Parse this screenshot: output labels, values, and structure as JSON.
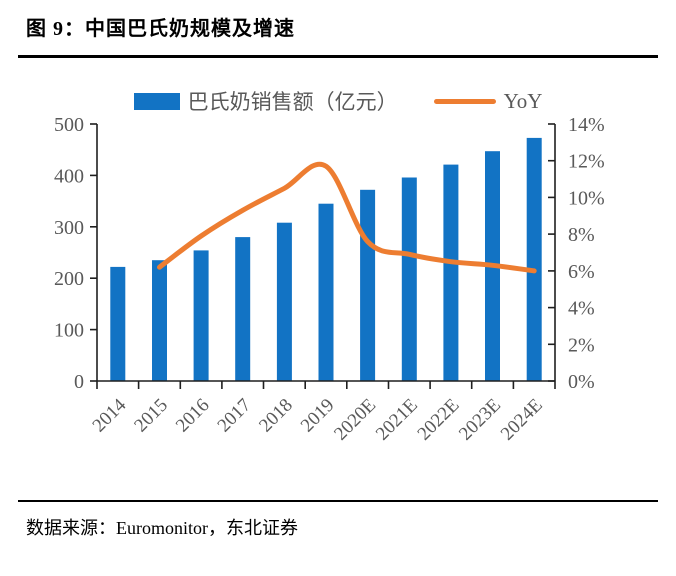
{
  "page": {
    "title": "图 9：中国巴氏奶规模及增速",
    "source_label": "数据来源：Euromonitor，东北证券"
  },
  "colors": {
    "bar_blue": "#1273C4",
    "line_orange": "#ED7D31",
    "label_gray": "#595959",
    "axis_dark": "#1f1f1f",
    "rule_black": "#000000"
  },
  "chart_data": {
    "type": "bar",
    "subtype": "bar-line-combo",
    "title": "中国巴氏奶规模及增速",
    "grid": false,
    "legend_position": "top",
    "categories": [
      "2014",
      "2015",
      "2016",
      "2017",
      "2018",
      "2019",
      "2020E",
      "2021E",
      "2022E",
      "2023E",
      "2024E"
    ],
    "series": [
      {
        "name": "巴氏奶销售额（亿元）",
        "type": "bar",
        "axis": "left",
        "color": "#1273C4",
        "values": [
          222,
          235,
          254,
          280,
          308,
          345,
          372,
          396,
          421,
          447,
          473
        ]
      },
      {
        "name": "YoY",
        "type": "line",
        "axis": "right",
        "color": "#ED7D31",
        "values": [
          null,
          6.2,
          7.9,
          9.3,
          10.5,
          11.7,
          7.6,
          6.9,
          6.5,
          6.3,
          6.0
        ]
      }
    ],
    "left_axis": {
      "min": 0,
      "max": 500,
      "step": 100,
      "tick_labels": [
        "0",
        "100",
        "200",
        "300",
        "400",
        "500"
      ]
    },
    "right_axis": {
      "min": 0,
      "max": 14,
      "step": 2,
      "tick_labels": [
        "0%",
        "2%",
        "4%",
        "6%",
        "8%",
        "10%",
        "12%",
        "14%"
      ]
    }
  }
}
